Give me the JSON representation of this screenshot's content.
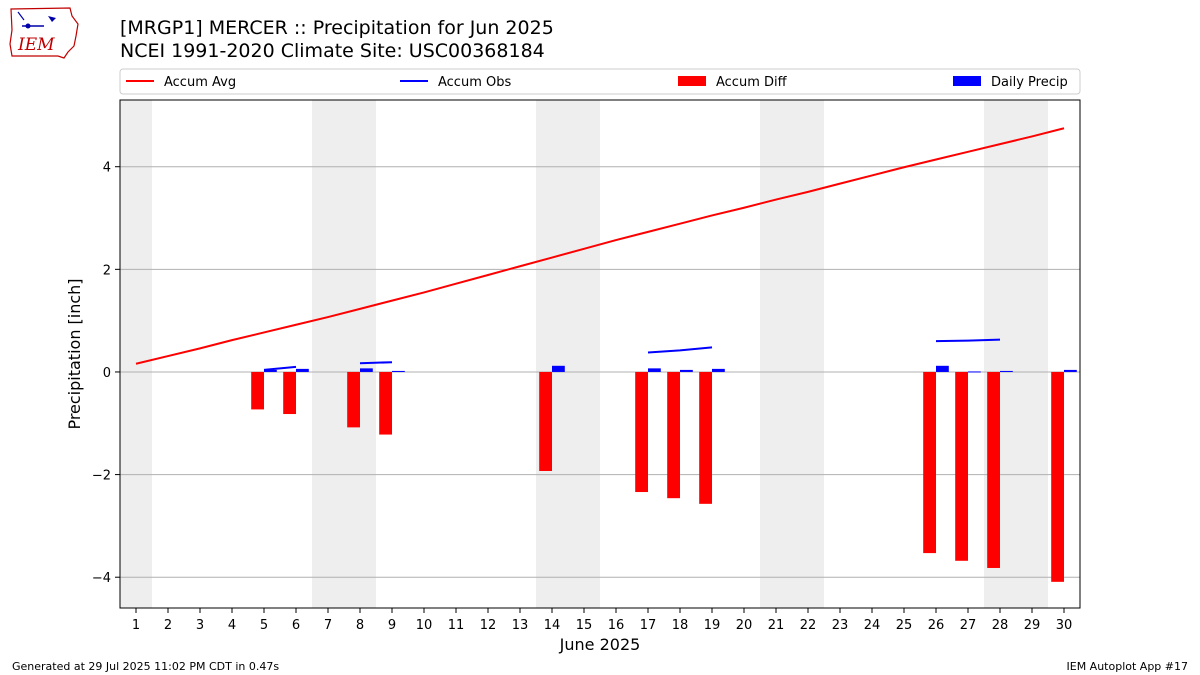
{
  "header": {
    "title": "[MRGP1] MERCER :: Precipitation for Jun 2025",
    "subtitle": "NCEI 1991-2020 Climate Site: USC00368184",
    "logo_text": "IEM"
  },
  "footer": {
    "generated": "Generated at 29 Jul 2025 11:02 PM CDT in 0.47s",
    "app": "IEM Autoplot App #17"
  },
  "colors": {
    "accum_avg": "#ff0000",
    "accum_obs": "#0000ff",
    "accum_diff": "#ff0000",
    "daily_precip": "#0000ff",
    "weekend_shade": "#eeeeee",
    "grid": "#b0b0b0"
  },
  "chart_data": {
    "type": "bar",
    "xlabel": "June 2025",
    "ylabel": "Precipitation [inch]",
    "xlim": [
      0.5,
      30.5
    ],
    "ylim": [
      -4.6,
      5.3
    ],
    "yticks": [
      -4,
      -2,
      0,
      2,
      4
    ],
    "ytick_labels": [
      "−4",
      "−2",
      "0",
      "2",
      "4"
    ],
    "grid": "horizontal",
    "legend_position": "top",
    "legend": [
      "Accum Avg",
      "Accum Obs",
      "Accum Diff",
      "Daily Precip"
    ],
    "days": [
      1,
      2,
      3,
      4,
      5,
      6,
      7,
      8,
      9,
      10,
      11,
      12,
      13,
      14,
      15,
      16,
      17,
      18,
      19,
      20,
      21,
      22,
      23,
      24,
      25,
      26,
      27,
      28,
      29,
      30
    ],
    "weekend_spans": [
      [
        0.5,
        1.5
      ],
      [
        6.5,
        8.5
      ],
      [
        13.5,
        15.5
      ],
      [
        20.5,
        22.5
      ],
      [
        27.5,
        29.5
      ]
    ],
    "series": [
      {
        "name": "Accum Avg",
        "type": "line",
        "x": [
          1,
          2,
          3,
          4,
          5,
          6,
          7,
          8,
          9,
          10,
          11,
          12,
          13,
          14,
          15,
          16,
          17,
          18,
          19,
          20,
          21,
          22,
          23,
          24,
          25,
          26,
          27,
          28,
          29,
          30
        ],
        "values": [
          0.16,
          0.31,
          0.46,
          0.62,
          0.77,
          0.92,
          1.07,
          1.23,
          1.39,
          1.55,
          1.72,
          1.89,
          2.06,
          2.23,
          2.4,
          2.57,
          2.73,
          2.89,
          3.05,
          3.2,
          3.36,
          3.51,
          3.67,
          3.83,
          3.99,
          4.14,
          4.29,
          4.44,
          4.59,
          4.75
        ]
      },
      {
        "name": "Accum Obs",
        "type": "line",
        "segments": [
          {
            "x": [
              5,
              6
            ],
            "values": [
              0.04,
              0.1
            ]
          },
          {
            "x": [
              8,
              9
            ],
            "values": [
              0.17,
              0.19
            ]
          },
          {
            "x": [
              17,
              18,
              19
            ],
            "values": [
              0.38,
              0.42,
              0.48
            ]
          },
          {
            "x": [
              26,
              27,
              28
            ],
            "values": [
              0.6,
              0.61,
              0.63
            ]
          }
        ]
      },
      {
        "name": "Accum Diff",
        "type": "bar",
        "x": [
          5,
          6,
          8,
          9,
          14,
          17,
          18,
          19,
          26,
          27,
          28,
          30
        ],
        "values": [
          -0.73,
          -0.82,
          -1.08,
          -1.22,
          -1.93,
          -2.34,
          -2.46,
          -2.57,
          -3.53,
          -3.68,
          -3.82,
          -4.09
        ]
      },
      {
        "name": "Daily Precip",
        "type": "bar",
        "x": [
          5,
          6,
          8,
          9,
          14,
          17,
          18,
          19,
          26,
          27,
          28,
          30
        ],
        "values": [
          0.04,
          0.06,
          0.07,
          0.02,
          0.12,
          0.07,
          0.04,
          0.06,
          0.12,
          0.01,
          0.02,
          0.04
        ]
      }
    ]
  }
}
